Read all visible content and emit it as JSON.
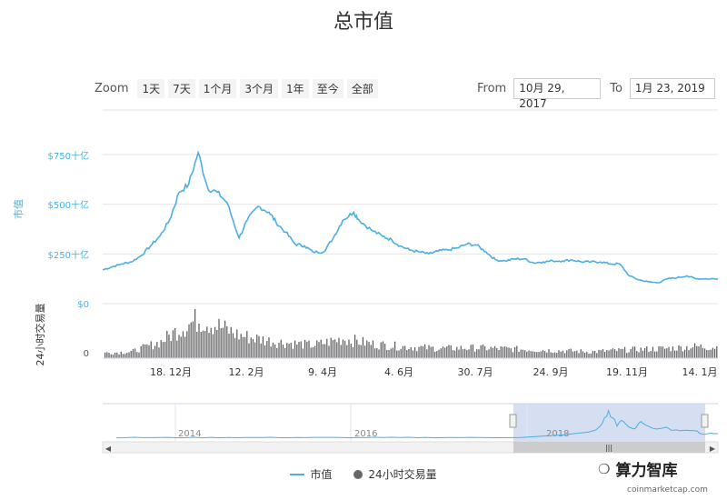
{
  "header": {
    "title": "总市值"
  },
  "zoom": {
    "label": "Zoom",
    "buttons": [
      "1天",
      "7天",
      "1个月",
      "3个月",
      "1年",
      "至今",
      "全部"
    ]
  },
  "range": {
    "from_label": "From",
    "from_value": "10月 29, 2017",
    "to_label": "To",
    "to_value": "1月 23, 2019"
  },
  "axes": {
    "y_main_label": "市值",
    "y_main_ticks": [
      "$0",
      "$250十亿",
      "$500十亿",
      "$750十亿"
    ],
    "y_volume_label": "24小时交易量",
    "y_volume_ticks": [
      "0"
    ],
    "x_ticks": [
      "18. 12月",
      "12. 2月",
      "9. 4月",
      "4. 6月",
      "30. 7月",
      "24. 9月",
      "19. 11月",
      "14. 1月"
    ],
    "navigator_ticks": [
      "2014",
      "2016",
      "2018"
    ]
  },
  "legend": {
    "market_cap": "市值",
    "volume": "24小时交易量"
  },
  "watermark": {
    "text": "算力智库",
    "source": "coinmarketcap.com"
  },
  "colors": {
    "market_cap": "#4cafe2",
    "volume": "#555555",
    "navigator_mask": "#c8d4ec"
  },
  "chart_data": {
    "type": "line",
    "title": "总市值",
    "x_range": [
      "2017-10-29",
      "2019-01-23"
    ],
    "ylim": [
      0,
      850
    ],
    "ylabel": "市值",
    "y_unit": "十亿美元",
    "series": [
      {
        "name": "市值",
        "x": [
          "2017-10-29",
          "2017-11-05",
          "2017-11-12",
          "2017-11-19",
          "2017-11-26",
          "2017-12-03",
          "2017-12-10",
          "2017-12-17",
          "2017-12-24",
          "2017-12-31",
          "2018-01-07",
          "2018-01-14",
          "2018-01-21",
          "2018-01-28",
          "2018-02-06",
          "2018-02-12",
          "2018-02-20",
          "2018-02-28",
          "2018-03-05",
          "2018-03-12",
          "2018-03-19",
          "2018-03-26",
          "2018-04-01",
          "2018-04-09",
          "2018-04-16",
          "2018-04-23",
          "2018-05-01",
          "2018-05-05",
          "2018-05-14",
          "2018-05-22",
          "2018-05-29",
          "2018-06-04",
          "2018-06-11",
          "2018-06-18",
          "2018-06-25",
          "2018-07-02",
          "2018-07-09",
          "2018-07-16",
          "2018-07-23",
          "2018-07-30",
          "2018-08-06",
          "2018-08-13",
          "2018-08-20",
          "2018-08-27",
          "2018-09-03",
          "2018-09-10",
          "2018-09-17",
          "2018-09-24",
          "2018-10-01",
          "2018-10-08",
          "2018-10-15",
          "2018-10-22",
          "2018-10-29",
          "2018-11-05",
          "2018-11-12",
          "2018-11-19",
          "2018-11-26",
          "2018-12-03",
          "2018-12-10",
          "2018-12-17",
          "2018-12-24",
          "2018-12-31",
          "2019-01-07",
          "2019-01-14",
          "2019-01-23"
        ],
        "values": [
          170,
          185,
          200,
          210,
          240,
          290,
          340,
          420,
          560,
          600,
          760,
          580,
          560,
          510,
          330,
          420,
          490,
          460,
          410,
          360,
          300,
          290,
          260,
          260,
          330,
          420,
          460,
          420,
          370,
          340,
          320,
          290,
          270,
          260,
          250,
          265,
          270,
          280,
          300,
          295,
          260,
          220,
          215,
          225,
          225,
          205,
          210,
          215,
          215,
          220,
          210,
          210,
          210,
          200,
          200,
          140,
          120,
          110,
          105,
          125,
          130,
          140,
          125,
          125,
          125
        ]
      },
      {
        "name": "24小时交易量",
        "x": [
          "2017-10-29",
          "2017-11-19",
          "2017-12-10",
          "2017-12-24",
          "2018-01-07",
          "2018-01-21",
          "2018-02-06",
          "2018-03-05",
          "2018-04-01",
          "2018-04-23",
          "2018-05-14",
          "2018-06-04",
          "2018-07-02",
          "2018-07-30",
          "2018-08-27",
          "2018-09-24",
          "2018-10-22",
          "2018-11-19",
          "2018-12-17",
          "2019-01-07",
          "2019-01-23"
        ],
        "values": [
          8,
          10,
          25,
          45,
          60,
          50,
          35,
          25,
          20,
          30,
          22,
          18,
          15,
          16,
          14,
          12,
          10,
          13,
          15,
          18,
          17
        ]
      }
    ],
    "navigator": {
      "x_range": [
        "2013-04-28",
        "2019-01-23"
      ],
      "selected": [
        "2017-10-29",
        "2019-01-23"
      ]
    }
  }
}
